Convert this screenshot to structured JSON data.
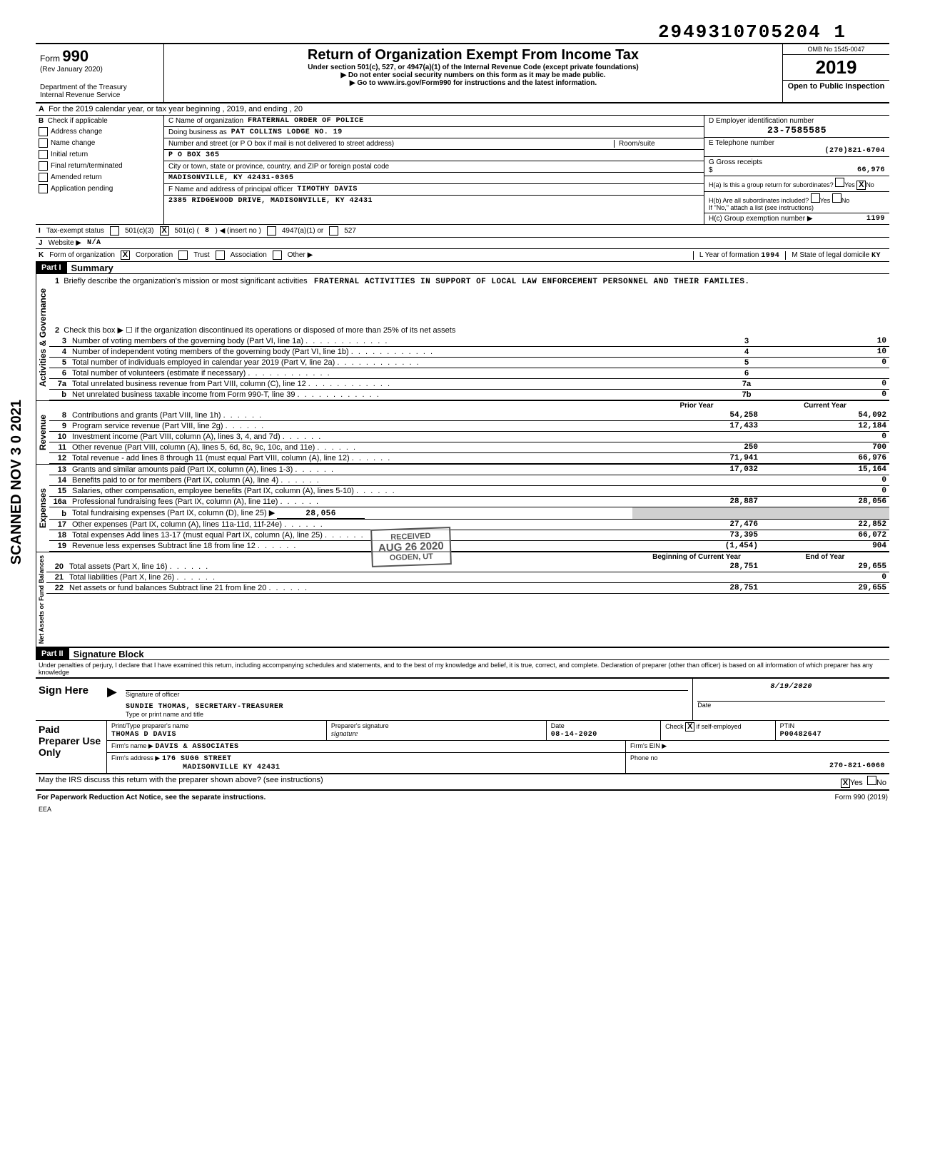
{
  "dln": "2949310705204 1",
  "omb": "OMB No 1545-0047",
  "form_no": "990",
  "form_rev": "(Rev January 2020)",
  "dept": "Department of the Treasury",
  "irs": "Internal Revenue Service",
  "title": "Return of Organization Exempt From Income Tax",
  "subtitle1": "Under section 501(c), 527, or 4947(a)(1) of the Internal Revenue Code (except private foundations)",
  "subtitle2": "▶ Do not enter social security numbers on this form as it may be made public.",
  "subtitle3": "▶ Go to www.irs.gov/Form990 for instructions and the latest information.",
  "tax_year": "2019",
  "open_public": "Open to Public Inspection",
  "cal_line": "For the 2019 calendar year, or tax year beginning                          , 2019, and ending                      , 20",
  "scanned_badge": "SCANNED NOV 3 0 2021",
  "block_b": {
    "title": "Check if applicable",
    "items": [
      "Address change",
      "Name change",
      "Initial return",
      "Final return/terminated",
      "Amended return",
      "Application pending"
    ]
  },
  "block_c": {
    "name_lbl": "C  Name of organization",
    "name": "FRATERNAL ORDER OF POLICE",
    "dba_lbl": "Doing business as",
    "dba": "PAT COLLINS LODGE NO. 19",
    "street_lbl": "Number and street (or P O box if mail is not delivered to street address)",
    "street": "P O BOX 365",
    "room_lbl": "Room/suite",
    "city_lbl": "City or town, state or province, country, and ZIP or foreign postal code",
    "city": "MADISONVILLE, KY 42431-0365",
    "officer_lbl": "F  Name and address of principal officer",
    "officer": "TIMOTHY DAVIS",
    "officer_addr": "2385 RIDGEWOOD DRIVE, MADISONVILLE, KY 42431"
  },
  "block_d": {
    "ein_lbl": "D  Employer identification number",
    "ein": "23-7585585",
    "tel_lbl": "E  Telephone number",
    "tel": "(270)821-6704",
    "gross_lbl": "G  Gross receipts",
    "gross": "66,976",
    "ha_lbl": "H(a) Is this a group return for subordinates?",
    "ha_yes": "Yes",
    "ha_no": "No",
    "hb_lbl": "H(b) Are all subordinates included?",
    "hb_note": "If \"No,\" attach a list (see instructions)",
    "hc_lbl": "H(c)  Group exemption number  ▶",
    "hc_val": "1199"
  },
  "status": {
    "lbl": "Tax-exempt status",
    "c3": "501(c)(3)",
    "c": "501(c) (",
    "c_num": "8",
    "insert": ")  ◀ (insert no )",
    "a1": "4947(a)(1) or",
    "s527": "527"
  },
  "website": {
    "lbl": "Website ▶",
    "val": "N/A"
  },
  "form_org": {
    "lbl": "Form of organization",
    "corp": "Corporation",
    "trust": "Trust",
    "assoc": "Association",
    "other": "Other ▶",
    "year_lbl": "L  Year of formation",
    "year": "1994",
    "state_lbl": "M  State of legal domicile",
    "state": "KY"
  },
  "part1": {
    "bar": "Part I",
    "title": "Summary"
  },
  "mission_lbl": "Briefly describe the organization's mission or most significant activities",
  "mission": "FRATERNAL ACTIVITIES IN SUPPORT OF LOCAL LAW ENFORCEMENT PERSONNEL AND THEIR FAMILIES.",
  "line2": "Check this box ▶ ☐ if the organization discontinued its operations or disposed of more than 25% of its net assets",
  "gov_rows": [
    {
      "n": "3",
      "lbl": "Number of voting members of the governing body (Part VI, line 1a)",
      "box": "3",
      "val": "10"
    },
    {
      "n": "4",
      "lbl": "Number of independent voting members of the governing body (Part VI, line 1b)",
      "box": "4",
      "val": "10"
    },
    {
      "n": "5",
      "lbl": "Total number of individuals employed in calendar year 2019 (Part V, line 2a)",
      "box": "5",
      "val": "0"
    },
    {
      "n": "6",
      "lbl": "Total number of volunteers (estimate if necessary)",
      "box": "6",
      "val": ""
    },
    {
      "n": "7a",
      "lbl": "Total unrelated business revenue from Part VIII, column (C), line 12",
      "box": "7a",
      "val": "0"
    },
    {
      "n": "b",
      "lbl": "Net unrelated business taxable income from Form 990-T, line 39",
      "box": "7b",
      "val": "0"
    }
  ],
  "stamp": {
    "l1": "RECEIVED",
    "l2": "AUG 26 2020",
    "l3": "OGDEN, UT"
  },
  "col_hdr_prior": "Prior Year",
  "col_hdr_curr": "Current Year",
  "rev_rows": [
    {
      "n": "8",
      "lbl": "Contributions and grants (Part VIII, line 1h)",
      "p": "54,258",
      "c": "54,092"
    },
    {
      "n": "9",
      "lbl": "Program service revenue (Part VIII, line 2g)",
      "p": "17,433",
      "c": "12,184"
    },
    {
      "n": "10",
      "lbl": "Investment income (Part VIII, column (A), lines 3, 4, and 7d)",
      "p": "",
      "c": "0"
    },
    {
      "n": "11",
      "lbl": "Other revenue (Part VIII, column (A), lines 5, 6d, 8c, 9c, 10c, and 11e)",
      "p": "250",
      "c": "700"
    },
    {
      "n": "12",
      "lbl": "Total revenue - add lines 8 through 11 (must equal Part VIII, column (A), line 12)",
      "p": "71,941",
      "c": "66,976"
    }
  ],
  "exp_rows": [
    {
      "n": "13",
      "lbl": "Grants and similar amounts paid (Part IX, column (A), lines 1-3)",
      "p": "17,032",
      "c": "15,164"
    },
    {
      "n": "14",
      "lbl": "Benefits paid to or for members (Part IX, column (A), line 4)",
      "p": "",
      "c": "0"
    },
    {
      "n": "15",
      "lbl": "Salaries, other compensation, employee benefits (Part IX, column (A), lines 5-10)",
      "p": "",
      "c": "0"
    },
    {
      "n": "16a",
      "lbl": "Professional fundraising fees (Part IX, column (A), line 11e)",
      "p": "28,887",
      "c": "28,056"
    }
  ],
  "line16b": {
    "n": "b",
    "lbl": "Total fundraising expenses (Part IX, column (D), line 25)  ▶",
    "val": "28,056"
  },
  "exp_rows2": [
    {
      "n": "17",
      "lbl": "Other expenses (Part IX, column (A), lines 11a-11d, 11f-24e)",
      "p": "27,476",
      "c": "22,852"
    },
    {
      "n": "18",
      "lbl": "Total expenses  Add lines 13-17 (must equal Part IX, column (A), line 25)",
      "p": "73,395",
      "c": "66,072"
    },
    {
      "n": "19",
      "lbl": "Revenue less expenses  Subtract line 18 from line 12",
      "p": "(1,454)",
      "c": "904"
    }
  ],
  "col_hdr_begin": "Beginning of Current Year",
  "col_hdr_end": "End of Year",
  "na_rows": [
    {
      "n": "20",
      "lbl": "Total assets (Part X, line 16)",
      "p": "28,751",
      "c": "29,655"
    },
    {
      "n": "21",
      "lbl": "Total liabilities (Part X, line 26)",
      "p": "",
      "c": "0"
    },
    {
      "n": "22",
      "lbl": "Net assets or fund balances  Subtract line 21 from line 20",
      "p": "28,751",
      "c": "29,655"
    }
  ],
  "part2": {
    "bar": "Part II",
    "title": "Signature Block"
  },
  "perjury": "Under penalties of perjury, I declare that I have examined this return, including accompanying schedules and statements, and to the best of my knowledge and belief, it is true, correct, and complete. Declaration of preparer (other than officer) is based on all information of which preparer has any knowledge",
  "sign": {
    "here": "Sign Here",
    "sig_lbl": "Signature of officer",
    "date_lbl": "Date",
    "date": "8/19/2020",
    "name": "SUNDIE THOMAS, SECRETARY-TREASURER",
    "name_lbl": "Type or print name and title"
  },
  "paid": {
    "lbl": "Paid Preparer Use Only",
    "col1": "Print/Type preparer's name",
    "col2": "Preparer's signature",
    "col3": "Date",
    "col4_lbl": "Check ",
    "col4_chk": "X",
    "col4_sfx": " if self-employed",
    "col5": "PTIN",
    "name": "THOMAS D DAVIS",
    "date": "08-14-2020",
    "ptin": "P00482647",
    "firm_lbl": "Firm's name  ▶",
    "firm": "DAVIS & ASSOCIATES",
    "ein_lbl": "Firm's EIN ▶",
    "addr_lbl": "Firm's address ▶",
    "addr1": "176 SUGG STREET",
    "addr2": "MADISONVILLE KY 42431",
    "phone_lbl": "Phone no",
    "phone": "270-821-6060"
  },
  "discuss": "May the IRS discuss this return with the preparer shown above? (see instructions)",
  "discuss_yes": "Yes",
  "discuss_no": "No",
  "paperwork": "For Paperwork Reduction Act Notice, see the separate instructions.",
  "eea": "EEA",
  "form_footer": "Form 990 (2019)",
  "side_gov": "Activities & Governance",
  "side_rev": "Revenue",
  "side_exp": "Expenses",
  "side_na": "Net Assets or Fund Balances"
}
